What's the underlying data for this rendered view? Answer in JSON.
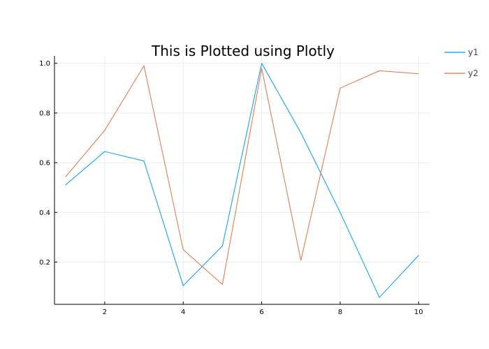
{
  "chart_data": {
    "type": "line",
    "title": "This is Plotted using Plotly",
    "xlabel": "",
    "ylabel": "",
    "x": [
      1,
      2,
      3,
      4,
      5,
      6,
      7,
      8,
      9,
      10
    ],
    "xlim": [
      0.72,
      10.28
    ],
    "ylim": [
      0.03,
      1.03
    ],
    "xticks": [
      2,
      4,
      6,
      8,
      10
    ],
    "yticks": [
      0.2,
      0.4,
      0.6,
      0.8,
      1.0
    ],
    "ytick_labels": [
      "0.2",
      "0.4",
      "0.6",
      "0.8",
      "1.0"
    ],
    "grid": true,
    "legend_position": "top-right",
    "series": [
      {
        "name": "y1",
        "color": "#009af9",
        "values": [
          0.51,
          0.645,
          0.607,
          0.105,
          0.265,
          1.0,
          0.72,
          0.4,
          0.058,
          0.227
        ]
      },
      {
        "name": "y2",
        "color": "#e26f46",
        "values": [
          0.543,
          0.73,
          0.99,
          0.25,
          0.11,
          0.98,
          0.207,
          0.9,
          0.97,
          0.958
        ]
      }
    ]
  }
}
